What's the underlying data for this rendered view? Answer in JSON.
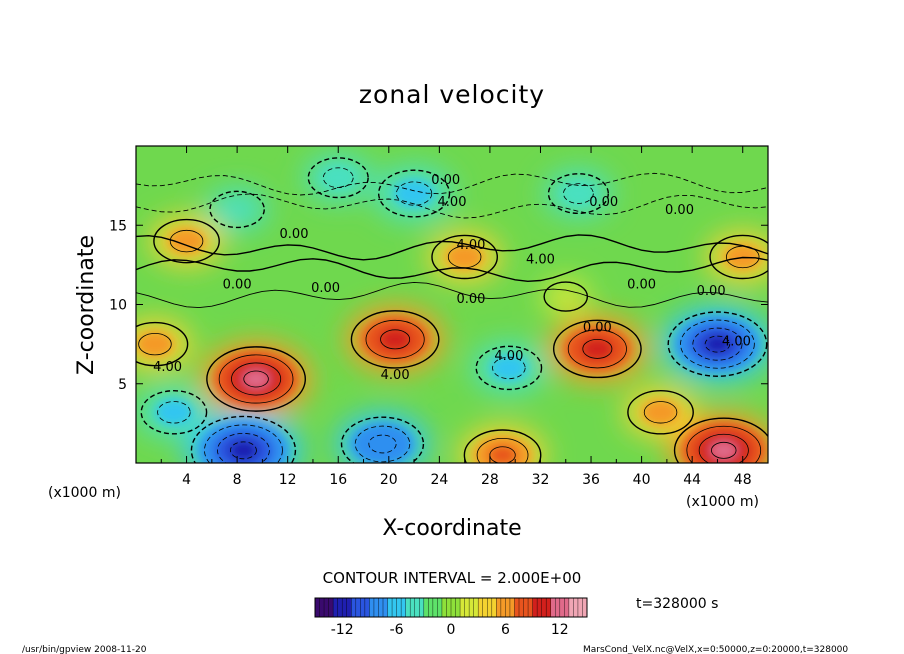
{
  "chart_data": {
    "type": "heatmap",
    "title": "zonal velocity",
    "xlabel": "X-coordinate",
    "ylabel": "Z-coordinate",
    "x_unit_left": "(x1000 m)",
    "x_unit_right": "(x1000 m)",
    "xlim": [
      0,
      50
    ],
    "ylim": [
      0,
      20
    ],
    "x_ticks": [
      4,
      8,
      12,
      16,
      20,
      24,
      28,
      32,
      36,
      40,
      44,
      48
    ],
    "y_ticks": [
      5,
      10,
      15
    ],
    "contour_interval_text": "CONTOUR INTERVAL = 2.000E+00",
    "contour_labels": [
      "0.00",
      "4.00",
      "0.00",
      "4.00",
      "0.00",
      "0.00",
      "4.00",
      "4.00",
      "0.00",
      "0.00",
      "0.00",
      "0.00",
      "4.00",
      "4.00",
      "0.00",
      "0.00",
      "4.00"
    ],
    "colorbar": {
      "min": -15,
      "max": 15,
      "ticks": [
        -12,
        -6,
        0,
        6,
        12
      ],
      "colors": [
        "#3a0a6e",
        "#1f1fb0",
        "#2a55e0",
        "#2f8ff0",
        "#33c6f0",
        "#4ae0c0",
        "#5ee26a",
        "#8ee03a",
        "#d6e838",
        "#f4d230",
        "#f49a28",
        "#e8541e",
        "#d2201c",
        "#e06a8a",
        "#f0a6b4"
      ]
    },
    "time_label": "t=328000 s",
    "field_features": [
      {
        "x": 9.5,
        "z": 5.3,
        "value": 12
      },
      {
        "x": 20.5,
        "z": 7.8,
        "value": 10
      },
      {
        "x": 36.5,
        "z": 7.2,
        "value": 10
      },
      {
        "x": 1.5,
        "z": 7.5,
        "value": 6
      },
      {
        "x": 46,
        "z": 7.5,
        "value": -12
      },
      {
        "x": 8.5,
        "z": 0.8,
        "value": -13
      },
      {
        "x": 29.5,
        "z": 6,
        "value": -6
      },
      {
        "x": 19.5,
        "z": 1.2,
        "value": -9
      },
      {
        "x": 46.5,
        "z": 0.8,
        "value": 12
      },
      {
        "x": 29,
        "z": 0.5,
        "value": 8
      },
      {
        "x": 41.5,
        "z": 3.2,
        "value": 6
      },
      {
        "x": 3,
        "z": 3.2,
        "value": -6
      },
      {
        "x": 26,
        "z": 13,
        "value": 6
      },
      {
        "x": 48,
        "z": 13,
        "value": 6
      },
      {
        "x": 4,
        "z": 14,
        "value": 6
      },
      {
        "x": 22,
        "z": 17,
        "value": -7
      },
      {
        "x": 35,
        "z": 17,
        "value": -5
      },
      {
        "x": 16,
        "z": 18,
        "value": -5
      },
      {
        "x": 8,
        "z": 16,
        "value": -4
      },
      {
        "x": 34,
        "z": 10.5,
        "value": 2
      }
    ]
  },
  "footer": {
    "left": "/usr/bin/gpview   2008-11-20",
    "right": "MarsCond_VelX.nc@VelX,x=0:50000,z=0:20000,t=328000"
  }
}
